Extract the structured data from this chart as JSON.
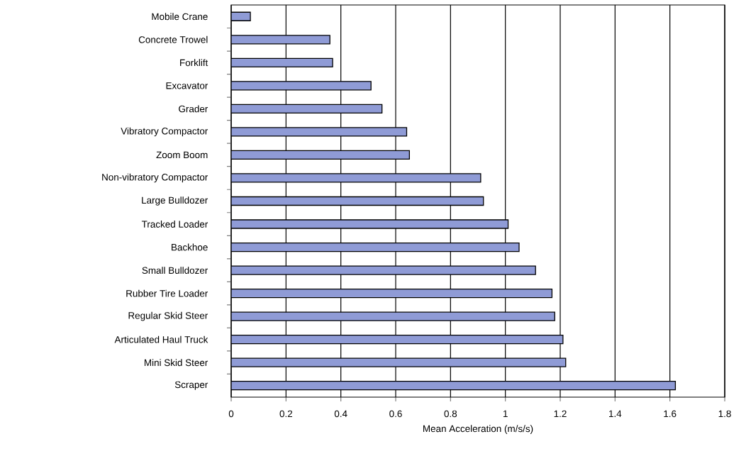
{
  "chart_data": {
    "type": "bar",
    "orientation": "horizontal",
    "xlabel": "Mean Acceleration (m/s/s)",
    "categories": [
      "Mobile Crane",
      "Concrete Trowel",
      "Forklift",
      "Excavator",
      "Grader",
      "Vibratory Compactor",
      "Zoom Boom",
      "Non-vibratory Compactor",
      "Large Bulldozer",
      "Tracked Loader",
      "Backhoe",
      "Small Bulldozer",
      "Rubber Tire Loader",
      "Regular Skid Steer",
      "Articulated Haul Truck",
      "Mini Skid Steer",
      "Scraper"
    ],
    "values": [
      0.07,
      0.36,
      0.37,
      0.51,
      0.55,
      0.64,
      0.65,
      0.91,
      0.92,
      1.01,
      1.05,
      1.11,
      1.17,
      1.18,
      1.21,
      1.22,
      1.62
    ],
    "color": "#8f9bd6",
    "xlim": [
      0,
      1.8
    ],
    "xticks": [
      0,
      0.2,
      0.4,
      0.6,
      0.8,
      1,
      1.2,
      1.4,
      1.6,
      1.8
    ],
    "grid": "x"
  }
}
